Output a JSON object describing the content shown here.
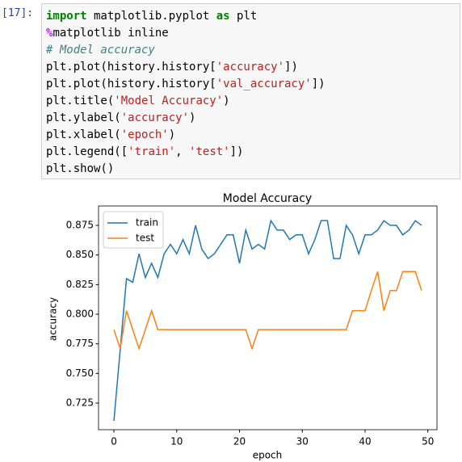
{
  "cell": {
    "prompt": "[17]:",
    "lines": [
      [
        {
          "text": "import",
          "color": "#008000",
          "bold": true
        },
        {
          "text": " matplotlib.pyplot ",
          "color": "#000000"
        },
        {
          "text": "as",
          "color": "#008000",
          "bold": true
        },
        {
          "text": " plt",
          "color": "#000000"
        }
      ],
      [
        {
          "text": "%",
          "color": "#aa22ff",
          "bold": true
        },
        {
          "text": "matplotlib inline",
          "color": "#000000"
        }
      ],
      [
        {
          "text": "# Model accuracy",
          "color": "#408080",
          "italic": true
        }
      ],
      [
        {
          "text": "plt.plot(history.history[",
          "color": "#000000"
        },
        {
          "text": "'accuracy'",
          "color": "#ba2121"
        },
        {
          "text": "])",
          "color": "#000000"
        }
      ],
      [
        {
          "text": "plt.plot(history.history[",
          "color": "#000000"
        },
        {
          "text": "'val_accuracy'",
          "color": "#ba2121"
        },
        {
          "text": "])",
          "color": "#000000"
        }
      ],
      [
        {
          "text": "plt.title(",
          "color": "#000000"
        },
        {
          "text": "'Model Accuracy'",
          "color": "#ba2121"
        },
        {
          "text": ")",
          "color": "#000000"
        }
      ],
      [
        {
          "text": "plt.ylabel(",
          "color": "#000000"
        },
        {
          "text": "'accuracy'",
          "color": "#ba2121"
        },
        {
          "text": ")",
          "color": "#000000"
        }
      ],
      [
        {
          "text": "plt.xlabel(",
          "color": "#000000"
        },
        {
          "text": "'epoch'",
          "color": "#ba2121"
        },
        {
          "text": ")",
          "color": "#000000"
        }
      ],
      [
        {
          "text": "plt.legend([",
          "color": "#000000"
        },
        {
          "text": "'train'",
          "color": "#ba2121"
        },
        {
          "text": ", ",
          "color": "#000000"
        },
        {
          "text": "'test'",
          "color": "#ba2121"
        },
        {
          "text": "])",
          "color": "#000000"
        }
      ],
      [
        {
          "text": "plt.show()",
          "color": "#000000"
        }
      ]
    ]
  },
  "chart_data": {
    "type": "line",
    "title": "Model Accuracy",
    "x_label": "epoch",
    "y_label": "accuracy",
    "x": [
      0,
      1,
      2,
      3,
      4,
      5,
      6,
      7,
      8,
      9,
      10,
      11,
      12,
      13,
      14,
      15,
      16,
      17,
      18,
      19,
      20,
      21,
      22,
      23,
      24,
      25,
      26,
      27,
      28,
      29,
      30,
      31,
      32,
      33,
      34,
      35,
      36,
      37,
      38,
      39,
      40,
      41,
      42,
      43,
      44,
      45,
      46,
      47,
      48,
      49
    ],
    "series": [
      {
        "name": "train",
        "color": "#1f77b4",
        "values": [
          0.71,
          0.77,
          0.83,
          0.827,
          0.851,
          0.831,
          0.843,
          0.831,
          0.851,
          0.859,
          0.851,
          0.863,
          0.851,
          0.875,
          0.855,
          0.847,
          0.851,
          0.859,
          0.867,
          0.867,
          0.843,
          0.871,
          0.855,
          0.859,
          0.855,
          0.879,
          0.871,
          0.871,
          0.863,
          0.867,
          0.867,
          0.851,
          0.863,
          0.879,
          0.879,
          0.847,
          0.847,
          0.875,
          0.867,
          0.851,
          0.867,
          0.867,
          0.871,
          0.879,
          0.875,
          0.875,
          0.867,
          0.871,
          0.879,
          0.875
        ]
      },
      {
        "name": "test",
        "color": "#ff7f0e",
        "values": [
          0.787,
          0.771,
          0.803,
          0.787,
          0.771,
          0.787,
          0.803,
          0.787,
          0.787,
          0.787,
          0.787,
          0.787,
          0.787,
          0.787,
          0.787,
          0.787,
          0.787,
          0.787,
          0.787,
          0.787,
          0.787,
          0.787,
          0.771,
          0.787,
          0.787,
          0.787,
          0.787,
          0.787,
          0.787,
          0.787,
          0.787,
          0.787,
          0.787,
          0.787,
          0.787,
          0.787,
          0.787,
          0.787,
          0.803,
          0.803,
          0.803,
          0.82,
          0.836,
          0.803,
          0.82,
          0.82,
          0.836,
          0.836,
          0.836,
          0.82
        ]
      }
    ],
    "xlim": [
      -2.45,
      51.45
    ],
    "xticks": [
      0,
      10,
      20,
      30,
      40,
      50
    ],
    "ylim": [
      0.7025,
      0.8914
    ],
    "yticks": [
      0.725,
      {
        "value": 0.75,
        "label": "0.750"
      },
      0.775,
      {
        "value": 0.8,
        "label": "0.800"
      },
      0.825,
      {
        "value": 0.85,
        "label": "0.850"
      },
      0.875
    ],
    "grid": false,
    "legend": "upper-left"
  }
}
